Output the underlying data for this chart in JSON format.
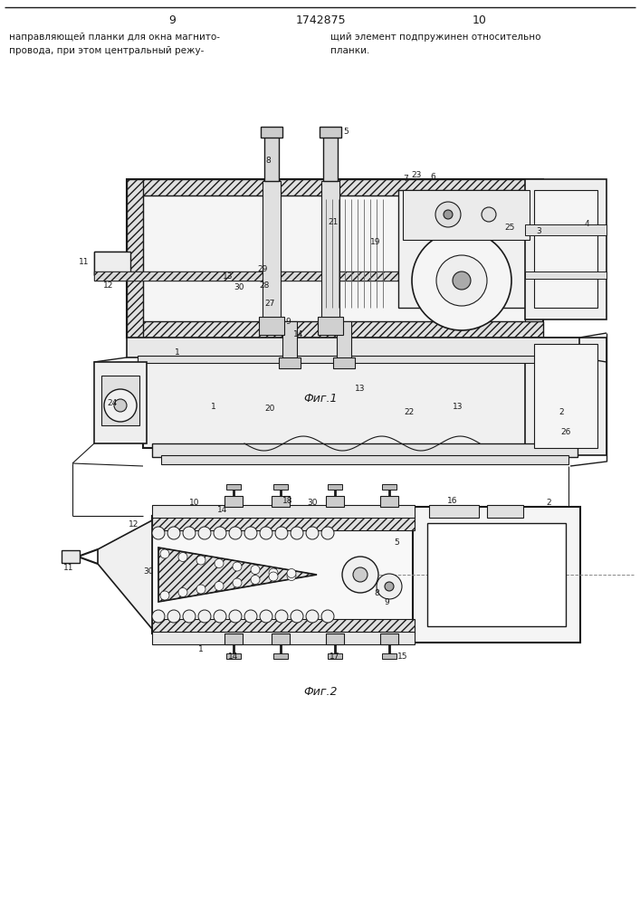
{
  "page_number_left": "9",
  "page_number_center": "1742875",
  "page_number_right": "10",
  "header_left": "направляющей планки для окна магнито-\nпровода, при этом центральный режу-",
  "header_right": "щий элемент подпружинен относительно\nпланки.",
  "fig1_caption": "Фиг.1",
  "fig2_caption": "Фиг.2",
  "bg_color": "#ffffff",
  "line_color": "#1a1a1a"
}
